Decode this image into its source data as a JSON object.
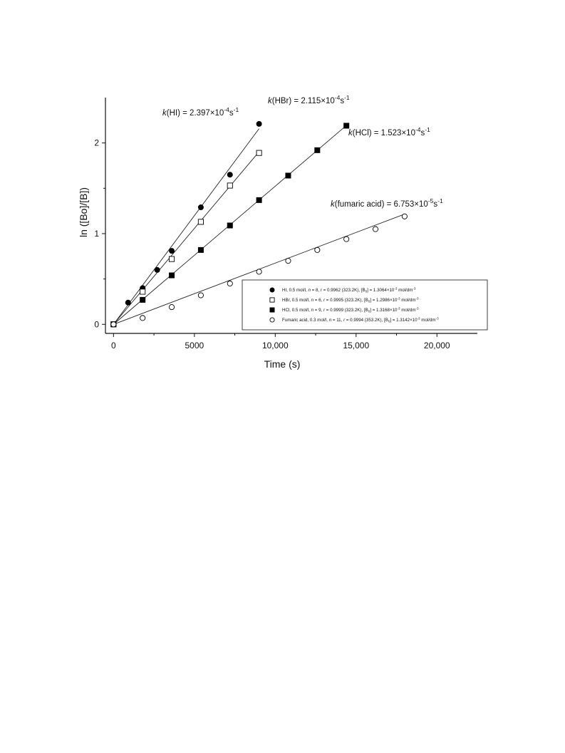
{
  "chart_data": {
    "type": "scatter",
    "xlabel": "Time (s)",
    "ylabel": "ln ([Bo]/[B])",
    "xlim": [
      -500,
      22500
    ],
    "ylim": [
      -0.1,
      2.5
    ],
    "x_ticks": [
      {
        "value": 0,
        "label": "0"
      },
      {
        "value": 5000,
        "label": "5000"
      },
      {
        "value": 10000,
        "label": "10,000"
      },
      {
        "value": 15000,
        "label": "15,000"
      },
      {
        "value": 20000,
        "label": "20,000"
      }
    ],
    "y_ticks": [
      {
        "value": 0,
        "label": "0"
      },
      {
        "value": 1,
        "label": "1"
      },
      {
        "value": 2,
        "label": "2"
      }
    ],
    "grid": false,
    "legend_position": "bottom-right",
    "series": [
      {
        "key": "hi",
        "marker": "filled-circle",
        "x": [
          0,
          900,
          1800,
          2700,
          3600,
          5400,
          7200,
          9000
        ],
        "y": [
          0,
          0.24,
          0.4,
          0.6,
          0.81,
          1.29,
          1.65,
          2.21
        ],
        "fit_slope": 0.0002397,
        "fit_range": [
          0,
          9000
        ],
        "legend": {
          "pre": "HI, 0.5 mol/l, ",
          "n_letter": "n",
          "n_eq": " = 8, ",
          "r_letter": "r",
          "r_eq": " = 0.9962 (323.2K), [B",
          "sub": "0",
          "post": "] = 1.3064×10",
          "exp": "-3",
          "unit": " mol/dm",
          "unit_exp": "-3"
        },
        "annotation": {
          "k": "k",
          "label": "(HI) = 2.397×10",
          "exp": "-4",
          "unit": "s",
          "unit_exp": "-1"
        }
      },
      {
        "key": "hbr",
        "marker": "open-square",
        "x": [
          0,
          1800,
          3600,
          5400,
          7200,
          9000
        ],
        "y": [
          0,
          0.36,
          0.72,
          1.13,
          1.53,
          1.89
        ],
        "fit_slope": 0.0002115,
        "fit_range": [
          0,
          9000
        ],
        "legend": {
          "pre": "HBr, 0.5 mol/l, ",
          "n_letter": "n",
          "n_eq": " = 6, ",
          "r_letter": "r",
          "r_eq": " = 0.9995 (323.2K), [B",
          "sub": "0",
          "post": "] = 1.2986×10",
          "exp": "-3",
          "unit": " mol/dm",
          "unit_exp": "-3"
        },
        "annotation": {
          "k": "k",
          "label": "(HBr) = 2.115×10",
          "exp": "-4",
          "unit": "s",
          "unit_exp": "-1"
        }
      },
      {
        "key": "hcl",
        "marker": "filled-square",
        "x": [
          0,
          1800,
          3600,
          5400,
          7200,
          9000,
          10800,
          12600,
          14400
        ],
        "y": [
          0,
          0.27,
          0.54,
          0.82,
          1.09,
          1.37,
          1.64,
          1.92,
          2.19
        ],
        "fit_slope": 0.0001523,
        "fit_range": [
          0,
          14400
        ],
        "legend": {
          "pre": "HCl, 0.5 mol/l, ",
          "n_letter": "n",
          "n_eq": " = 9, ",
          "r_letter": "r",
          "r_eq": " = 0.9999 (323.2K), [B",
          "sub": "0",
          "post": "] = 1.3168×10",
          "exp": "-3",
          "unit": " mol/dm",
          "unit_exp": "-3"
        },
        "annotation": {
          "k": "k",
          "label": "(HCl) = 1.523×10",
          "exp": "-4",
          "unit": "s",
          "unit_exp": "-1"
        }
      },
      {
        "key": "fumaric",
        "marker": "open-circle",
        "x": [
          0,
          1800,
          3600,
          5400,
          7200,
          9000,
          10800,
          12600,
          14400,
          16200,
          18000
        ],
        "y": [
          0,
          0.07,
          0.19,
          0.32,
          0.45,
          0.58,
          0.7,
          0.82,
          0.94,
          1.05,
          1.19
        ],
        "fit_slope": 6.753e-05,
        "fit_range": [
          0,
          18000
        ],
        "legend": {
          "pre": "Fumaric acid, 0.3 mol/l, ",
          "n_letter": "n",
          "n_eq": " = 11, ",
          "r_letter": "r",
          "r_eq": " = 0.9994 (353.2K), [B",
          "sub": "0",
          "post": "] = 1.3142×10",
          "exp": "-3",
          "unit": " mol/dm",
          "unit_exp": "-3"
        },
        "annotation": {
          "k": "k",
          "label": "(fumaric acid) = 6.753×10",
          "exp": "-5",
          "unit": "s",
          "unit_exp": "-1"
        }
      }
    ]
  }
}
